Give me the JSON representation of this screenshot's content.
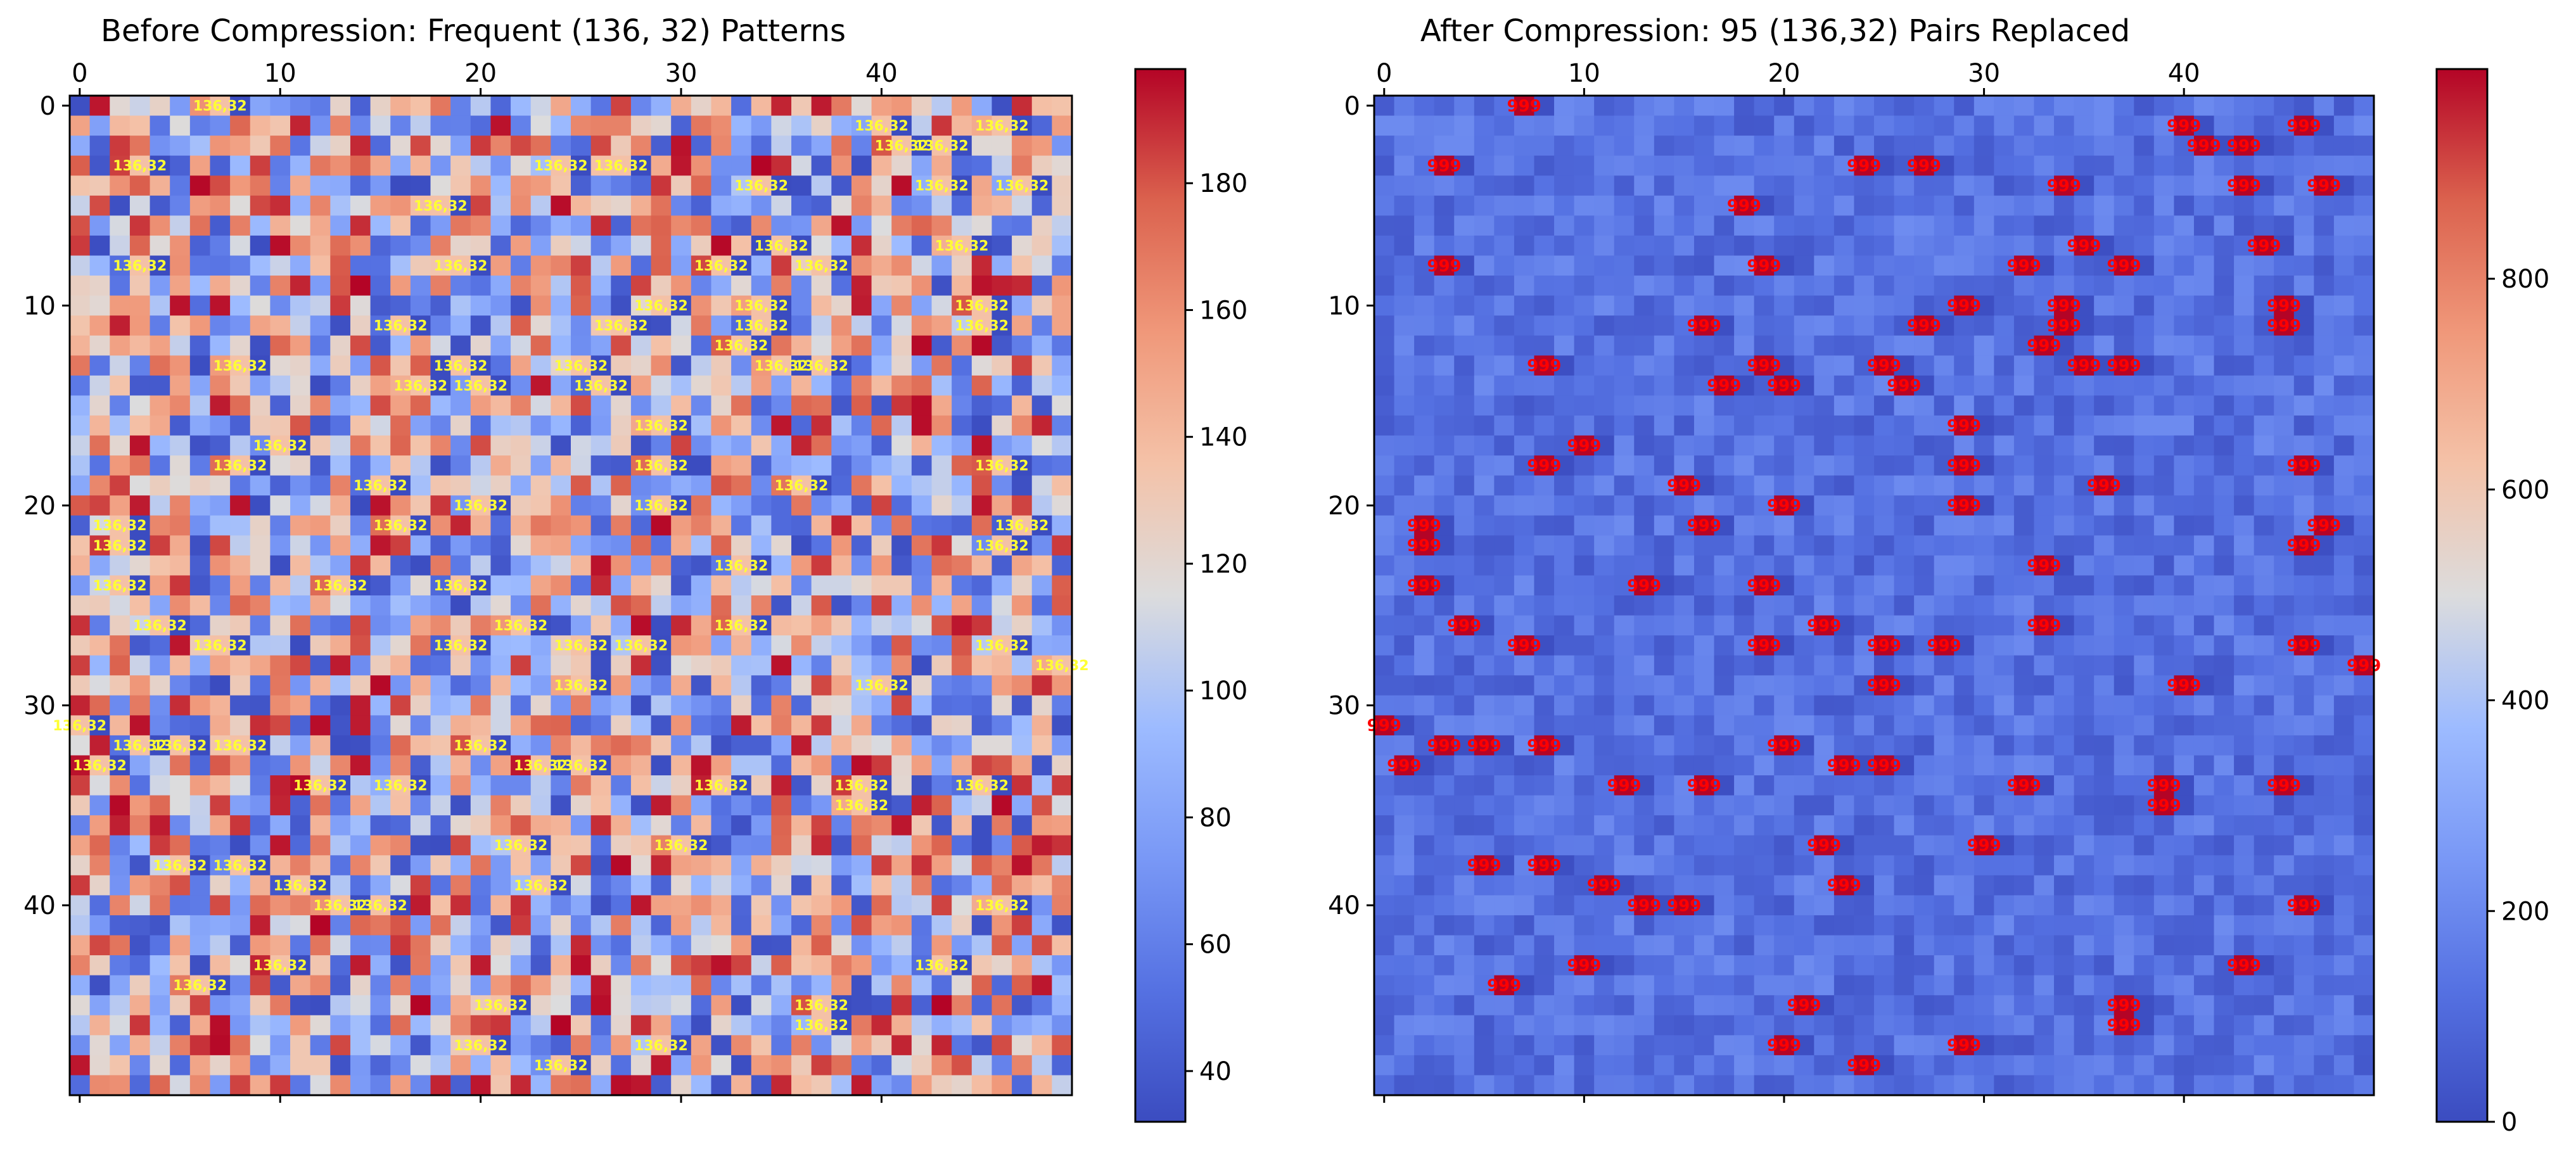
{
  "chart_data": [
    {
      "type": "heatmap",
      "title": "Before Compression: Frequent (136, 32) Patterns",
      "rows": 50,
      "cols": 50,
      "colormap": "coolwarm",
      "value_range": [
        32,
        198
      ],
      "colorbar_ticks": [
        40,
        60,
        80,
        100,
        120,
        140,
        160,
        180
      ],
      "x_ticks": [
        0,
        10,
        20,
        30,
        40
      ],
      "y_ticks": [
        0,
        10,
        20,
        30,
        40
      ],
      "x_axis_position": "top",
      "annotation_label": "136,32",
      "annotation_color": "#ffff33",
      "random_seed": 7,
      "pairs": [
        [
          0,
          7
        ],
        [
          1,
          40
        ],
        [
          1,
          46
        ],
        [
          2,
          41
        ],
        [
          2,
          43
        ],
        [
          3,
          3
        ],
        [
          3,
          24
        ],
        [
          3,
          27
        ],
        [
          4,
          34
        ],
        [
          4,
          43
        ],
        [
          4,
          47
        ],
        [
          5,
          18
        ],
        [
          7,
          35
        ],
        [
          7,
          44
        ],
        [
          8,
          3
        ],
        [
          8,
          19
        ],
        [
          8,
          32
        ],
        [
          8,
          37
        ],
        [
          10,
          29
        ],
        [
          10,
          34
        ],
        [
          10,
          45
        ],
        [
          11,
          16
        ],
        [
          11,
          27
        ],
        [
          11,
          34
        ],
        [
          11,
          45
        ],
        [
          12,
          33
        ],
        [
          13,
          8
        ],
        [
          13,
          19
        ],
        [
          13,
          25
        ],
        [
          13,
          35
        ],
        [
          13,
          37
        ],
        [
          14,
          17
        ],
        [
          14,
          20
        ],
        [
          14,
          26
        ],
        [
          16,
          29
        ],
        [
          17,
          10
        ],
        [
          18,
          8
        ],
        [
          18,
          29
        ],
        [
          18,
          46
        ],
        [
          19,
          15
        ],
        [
          19,
          36
        ],
        [
          20,
          20
        ],
        [
          20,
          29
        ],
        [
          21,
          2
        ],
        [
          21,
          16
        ],
        [
          21,
          47
        ],
        [
          22,
          2
        ],
        [
          22,
          46
        ],
        [
          23,
          33
        ],
        [
          24,
          2
        ],
        [
          24,
          13
        ],
        [
          24,
          19
        ],
        [
          26,
          4
        ],
        [
          26,
          22
        ],
        [
          26,
          33
        ],
        [
          27,
          7
        ],
        [
          27,
          19
        ],
        [
          27,
          25
        ],
        [
          27,
          28
        ],
        [
          27,
          46
        ],
        [
          28,
          49
        ],
        [
          29,
          25
        ],
        [
          29,
          40
        ],
        [
          31,
          0
        ],
        [
          32,
          3
        ],
        [
          32,
          5
        ],
        [
          32,
          8
        ],
        [
          32,
          20
        ],
        [
          33,
          1
        ],
        [
          33,
          23
        ],
        [
          33,
          25
        ],
        [
          34,
          12
        ],
        [
          34,
          16
        ],
        [
          34,
          32
        ],
        [
          34,
          39
        ],
        [
          34,
          45
        ],
        [
          35,
          39
        ],
        [
          37,
          22
        ],
        [
          37,
          30
        ],
        [
          38,
          5
        ],
        [
          38,
          8
        ],
        [
          39,
          11
        ],
        [
          39,
          23
        ],
        [
          40,
          13
        ],
        [
          40,
          15
        ],
        [
          40,
          46
        ],
        [
          43,
          10
        ],
        [
          43,
          43
        ],
        [
          44,
          6
        ],
        [
          45,
          21
        ],
        [
          45,
          37
        ],
        [
          46,
          37
        ],
        [
          47,
          20
        ],
        [
          47,
          29
        ],
        [
          48,
          24
        ]
      ]
    },
    {
      "type": "heatmap",
      "title": "After Compression: 95 (136,32) Pairs Replaced",
      "rows": 50,
      "cols": 50,
      "colormap": "coolwarm",
      "value_range": [
        0,
        999
      ],
      "colorbar_ticks": [
        0,
        200,
        400,
        600,
        800
      ],
      "x_ticks": [
        0,
        10,
        20,
        30,
        40
      ],
      "y_ticks": [
        0,
        10,
        20,
        30,
        40
      ],
      "x_axis_position": "top",
      "annotation_label": "999",
      "annotation_color": "#ff0000",
      "replacement_value": 999,
      "replaced_pairs": 95
    }
  ]
}
